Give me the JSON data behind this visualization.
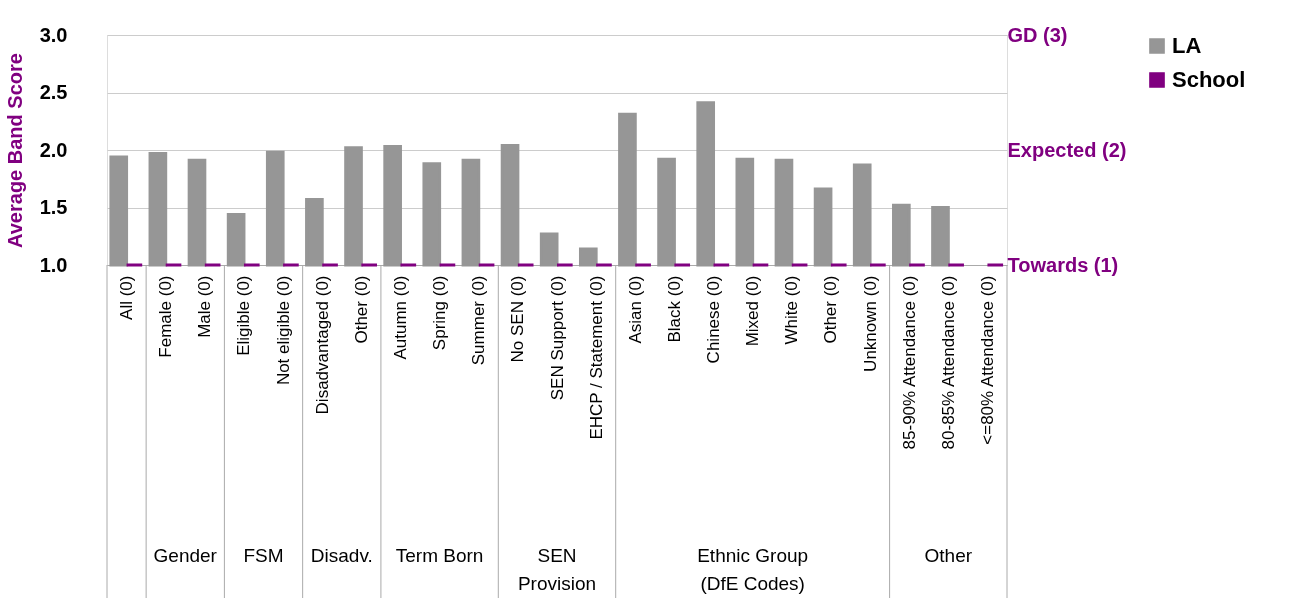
{
  "chart_data": {
    "type": "bar",
    "ylabel": "Average Band Score",
    "categories": [
      "All (0)",
      "Female (0)",
      "Male (0)",
      "Eligible (0)",
      "Not eligible (0)",
      "Disadvantaged (0)",
      "Other (0)",
      "Autumn (0)",
      "Spring (0)",
      "Summer (0)",
      "No SEN (0)",
      "SEN Support (0)",
      "EHCP / Statement (0)",
      "Asian (0)",
      "Black (0)",
      "Chinese (0)",
      "Mixed (0)",
      "White (0)",
      "Other (0)",
      "Unknown (0)",
      "85-90% Attendance (0)",
      "80-85% Attendance (0)",
      "<=80% Attendance (0)"
    ],
    "series": [
      {
        "name": "LA",
        "color": "#969696",
        "values": [
          1.94,
          1.97,
          1.91,
          1.44,
          1.98,
          1.57,
          2.02,
          2.03,
          1.88,
          1.91,
          2.04,
          1.27,
          1.14,
          2.31,
          1.92,
          2.41,
          1.92,
          1.91,
          1.66,
          1.87,
          1.52,
          1.5,
          null
        ]
      },
      {
        "name": "School",
        "color": "#800080",
        "values": [
          1.0,
          1.0,
          1.0,
          1.0,
          1.0,
          1.0,
          1.0,
          1.0,
          1.0,
          1.0,
          1.0,
          1.0,
          1.0,
          1.0,
          1.0,
          1.0,
          1.0,
          1.0,
          1.0,
          1.0,
          1.0,
          1.0,
          1.0
        ]
      }
    ],
    "ylim": [
      1.0,
      3.0
    ],
    "yticks": [
      {
        "value": 1,
        "label": "1.0"
      },
      1.5,
      {
        "value": 2,
        "label": "2.0"
      },
      2.5,
      {
        "value": 3,
        "label": "3.0"
      }
    ],
    "y2lim": [
      1.0,
      3.0
    ],
    "y2ticks": [
      {
        "value": 1,
        "label": "Towards (1)"
      },
      {
        "value": 2,
        "label": "Expected (2)"
      },
      {
        "value": 3,
        "label": "GD (3)"
      }
    ],
    "grid": "y",
    "legend": "right",
    "annotations": [
      "Gender",
      "FSM",
      "Disadv.",
      "Term Born",
      "SEN\nProvision",
      "Ethnic Group\n(DfE Codes)",
      "Other"
    ]
  }
}
